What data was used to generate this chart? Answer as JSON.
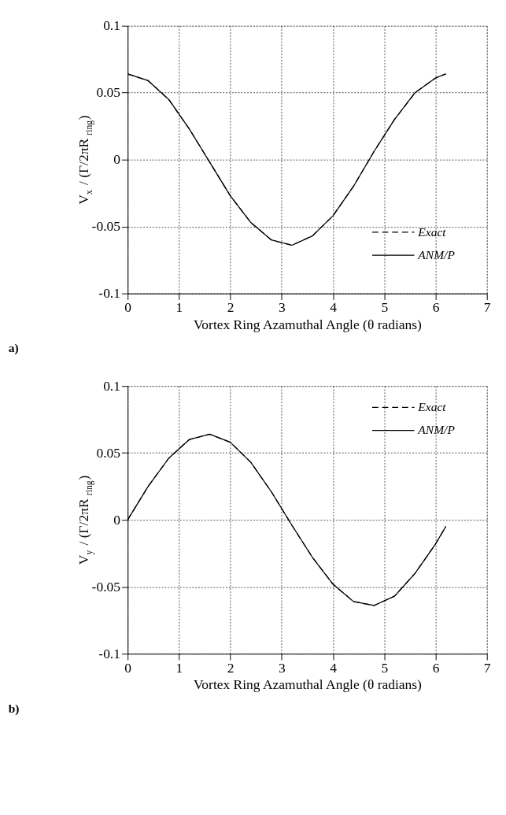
{
  "chart_data": [
    {
      "type": "line",
      "xlabel": "Vortex Ring Azamuthal Angle (θ radians)",
      "ylabel": "V$_{x}$ / (Γ/2πR$_{ring}$)",
      "annotations": [
        "a)"
      ],
      "x": [
        0,
        0.4,
        0.8,
        1.2,
        1.6,
        2.0,
        2.4,
        2.8,
        3.2,
        3.6,
        4.0,
        4.4,
        4.8,
        5.2,
        5.6,
        6.0,
        6.2
      ],
      "series": [
        {
          "name": "Exact",
          "color": "#000000",
          "line_style": "dashed",
          "values": [
            0.064,
            0.059,
            0.045,
            0.023,
            -0.002,
            -0.027,
            -0.047,
            -0.06,
            -0.064,
            -0.057,
            -0.042,
            -0.02,
            0.006,
            0.03,
            0.05,
            0.061,
            0.064
          ]
        },
        {
          "name": "ANM/P",
          "color": "#000000",
          "line_style": "solid",
          "values": [
            0.064,
            0.059,
            0.045,
            0.023,
            -0.002,
            -0.027,
            -0.047,
            -0.06,
            -0.064,
            -0.057,
            -0.042,
            -0.02,
            0.006,
            0.03,
            0.05,
            0.061,
            0.064
          ]
        }
      ],
      "xlim": [
        0,
        7
      ],
      "xticks": [
        0,
        1,
        2,
        3,
        4,
        5,
        6,
        7
      ],
      "ylim": [
        -0.1,
        0.1
      ],
      "yticks": [
        {
          "value": -0.1,
          "label": "-0.1"
        },
        {
          "value": -0.05,
          "label": "-0.05"
        },
        {
          "value": 0,
          "label": "0"
        },
        {
          "value": 0.05,
          "label": "0.05"
        },
        {
          "value": 0.1,
          "label": "0.1"
        }
      ],
      "grid": true,
      "legend": "bottom right",
      "marker": "none"
    },
    {
      "type": "line",
      "xlabel": "Vortex Ring Azamuthal Angle (θ radians)",
      "ylabel": "V$_{y}$ / (Γ/2πR$_{ring}$)",
      "annotations": [
        "b)"
      ],
      "x": [
        0,
        0.4,
        0.8,
        1.2,
        1.6,
        2.0,
        2.4,
        2.8,
        3.2,
        3.6,
        4.0,
        4.4,
        4.8,
        5.2,
        5.6,
        6.0,
        6.2
      ],
      "series": [
        {
          "name": "Exact",
          "color": "#000000",
          "line_style": "dashed",
          "values": [
            0,
            0.025,
            0.046,
            0.06,
            0.064,
            0.058,
            0.043,
            0.021,
            -0.004,
            -0.028,
            -0.048,
            -0.061,
            -0.064,
            -0.057,
            -0.04,
            -0.018,
            -0.005
          ]
        },
        {
          "name": "ANM/P",
          "color": "#000000",
          "line_style": "solid",
          "values": [
            0,
            0.025,
            0.046,
            0.06,
            0.064,
            0.058,
            0.043,
            0.021,
            -0.004,
            -0.028,
            -0.048,
            -0.061,
            -0.064,
            -0.057,
            -0.04,
            -0.018,
            -0.005
          ]
        }
      ],
      "xlim": [
        0,
        7
      ],
      "xticks": [
        0,
        1,
        2,
        3,
        4,
        5,
        6,
        7
      ],
      "ylim": [
        -0.1,
        0.1
      ],
      "yticks": [
        {
          "value": -0.1,
          "label": "-0.1"
        },
        {
          "value": -0.05,
          "label": "-0.05"
        },
        {
          "value": 0,
          "label": "0"
        },
        {
          "value": 0.05,
          "label": "0.05"
        },
        {
          "value": 0.1,
          "label": "0.1"
        }
      ],
      "grid": true,
      "legend": "top right",
      "marker": "none"
    }
  ]
}
